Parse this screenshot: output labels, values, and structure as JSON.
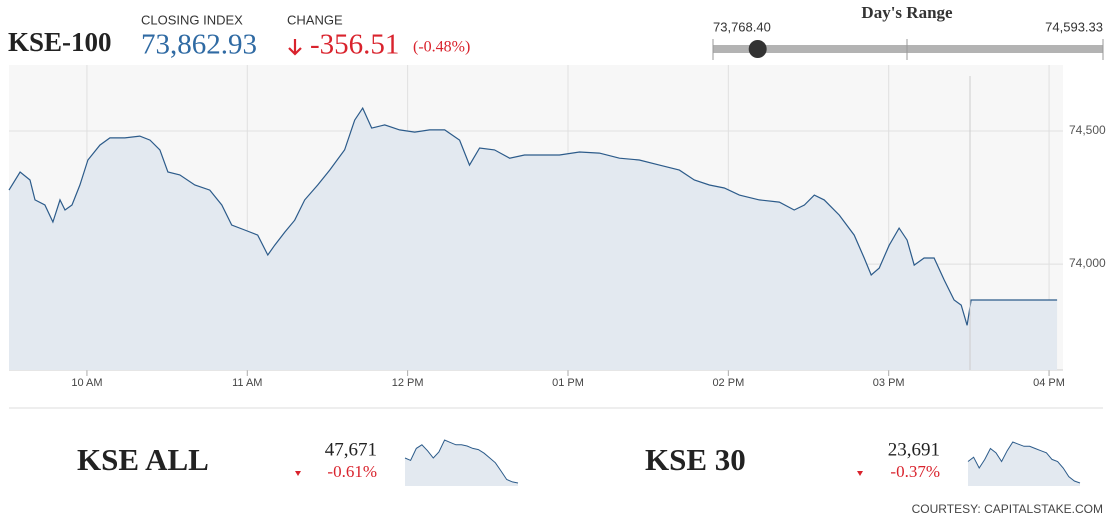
{
  "header": {
    "symbol": "KSE-100",
    "closing_label": "CLOSING INDEX",
    "closing": {
      "value": 73862.93,
      "label": "73,862.93"
    },
    "change_label": "CHANGE",
    "change": "-356.51",
    "change_pct": "(-0.48%)",
    "range_title": "Day's Range",
    "range_low": {
      "value": 73768.4,
      "label": "73,768.40"
    },
    "range_high": {
      "value": 74593.33,
      "label": "74,593.33"
    }
  },
  "indices": [
    {
      "name": "KSE ALL",
      "value": "47,671",
      "change": "-0.61%"
    },
    {
      "name": "KSE 30",
      "value": "23,691",
      "change": "-0.37%"
    }
  ],
  "courtesy": "COURTESY: CAPITALSTAKE.COM",
  "chart_data": [
    {
      "type": "line",
      "color": "#2c5b8a",
      "fill": "#e3e9f0",
      "grid": true,
      "x": [
        9.514,
        9.583,
        9.645,
        9.676,
        9.738,
        9.788,
        9.832,
        9.863,
        9.907,
        9.956,
        10.006,
        10.081,
        10.143,
        10.237,
        10.33,
        10.393,
        10.455,
        10.505,
        10.579,
        10.673,
        10.766,
        10.841,
        10.903,
        10.984,
        11.065,
        11.128,
        11.171,
        11.234,
        11.296,
        11.358,
        11.439,
        11.514,
        11.607,
        11.67,
        11.72,
        11.776,
        11.857,
        11.95,
        12.044,
        12.137,
        12.231,
        12.324,
        12.386,
        12.449,
        12.542,
        12.636,
        12.729,
        12.822,
        12.947,
        13.072,
        13.196,
        13.321,
        13.445,
        13.57,
        13.695,
        13.788,
        13.882,
        13.975,
        14.069,
        14.193,
        14.318,
        14.411,
        14.474,
        14.536,
        14.598,
        14.692,
        14.785,
        14.847,
        14.891,
        14.941,
        15.003,
        15.065,
        15.115,
        15.159,
        15.221,
        15.283,
        15.346,
        15.408,
        15.452,
        15.489,
        15.514,
        16.05
      ],
      "values": [
        74278,
        74346,
        74316,
        74241,
        74222,
        74158,
        74241,
        74203,
        74222,
        74297,
        74391,
        74447,
        74474,
        74474,
        74481,
        74466,
        74429,
        74346,
        74335,
        74297,
        74278,
        74222,
        74147,
        74128,
        74109,
        74034,
        74071,
        74120,
        74165,
        74241,
        74297,
        74353,
        74429,
        74541,
        74586,
        74511,
        74523,
        74504,
        74496,
        74504,
        74504,
        74466,
        74372,
        74436,
        74429,
        74398,
        74410,
        74410,
        74410,
        74421,
        74417,
        74398,
        74391,
        74372,
        74353,
        74316,
        74297,
        74286,
        74259,
        74241,
        74233,
        74203,
        74222,
        74259,
        74241,
        74184,
        74109,
        74023,
        73959,
        73985,
        74071,
        74135,
        74090,
        73996,
        74023,
        74023,
        73940,
        73865,
        73846,
        73770,
        73865,
        73865
      ],
      "xlim": [
        9.514,
        16.087
      ],
      "ylim": [
        73602,
        74748
      ],
      "xticks": [
        {
          "value": 10,
          "label": "10 AM"
        },
        {
          "value": 11,
          "label": "11 AM"
        },
        {
          "value": 12,
          "label": "12 PM"
        },
        {
          "value": 13,
          "label": "01 PM"
        },
        {
          "value": 14,
          "label": "02 PM"
        },
        {
          "value": 15,
          "label": "03 PM"
        },
        {
          "value": 16,
          "label": "04 PM"
        }
      ],
      "yticks": [
        {
          "value": 74000,
          "label": "74,000"
        },
        {
          "value": 74500,
          "label": "74,500"
        }
      ]
    },
    {
      "type": "sparkline",
      "color": "#2c5b8a",
      "fill": "#e3e9f0",
      "values": [
        47880,
        47860,
        47960,
        47990,
        47940,
        47880,
        47930,
        48030,
        48010,
        47990,
        47990,
        47980,
        47960,
        47950,
        47920,
        47880,
        47840,
        47770,
        47700,
        47680,
        47671
      ]
    },
    {
      "type": "sparkline",
      "color": "#2c5b8a",
      "fill": "#e3e9f0",
      "values": [
        23790,
        23810,
        23760,
        23800,
        23850,
        23830,
        23790,
        23840,
        23880,
        23870,
        23860,
        23860,
        23850,
        23840,
        23830,
        23800,
        23790,
        23760,
        23720,
        23700,
        23691
      ]
    }
  ]
}
